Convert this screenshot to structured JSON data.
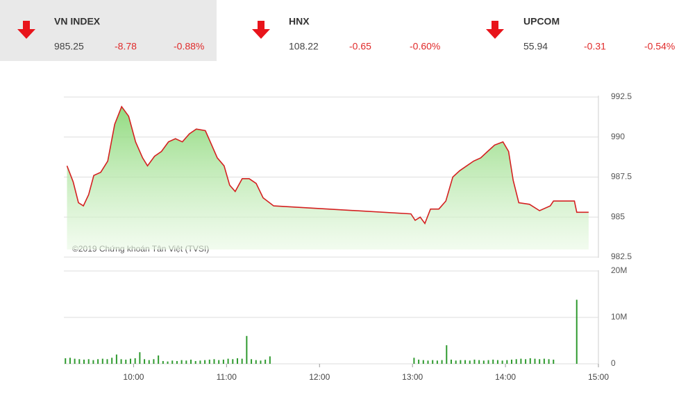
{
  "header": {
    "indices": [
      {
        "name": "VN INDEX",
        "value": "985.25",
        "change": "-8.78",
        "percent": "-0.88%"
      },
      {
        "name": "HNX",
        "value": "108.22",
        "change": "-0.65",
        "percent": "-0.60%"
      },
      {
        "name": "UPCOM",
        "value": "55.94",
        "change": "-0.31",
        "percent": "-0.54%"
      }
    ]
  },
  "chart_data": [
    {
      "type": "line",
      "annotation": "©2019 Chứng khoán Tân Việt (TVSI)",
      "color": "#d42020",
      "x": [
        557,
        561,
        564.4,
        567.6,
        571,
        574.3,
        578.8,
        583.3,
        587.8,
        592.3,
        596.8,
        601.3,
        605.8,
        609,
        613.5,
        618,
        622.5,
        627,
        631.5,
        636,
        640.5,
        646.3,
        649.5,
        654,
        658.4,
        662,
        665.6,
        670.1,
        674.6,
        679.1,
        683.6,
        690.4,
        779,
        781.7,
        785,
        788,
        791.6,
        797,
        801.5,
        806,
        810.5,
        815,
        819.5,
        824,
        828.5,
        833,
        838.4,
        842,
        845,
        848.6,
        855.5,
        862,
        868.9,
        871,
        884.5,
        886,
        893.7
      ],
      "values": [
        988.2,
        987.2,
        985.9,
        985.7,
        986.4,
        987.6,
        987.8,
        988.5,
        990.8,
        991.9,
        991.3,
        989.7,
        988.7,
        988.2,
        988.8,
        989.1,
        989.7,
        989.9,
        989.7,
        990.2,
        990.5,
        990.4,
        989.7,
        988.7,
        988.2,
        987.0,
        986.6,
        987.4,
        987.4,
        987.1,
        986.2,
        985.7,
        985.2,
        984.8,
        985.0,
        984.6,
        985.5,
        985.5,
        986.0,
        987.5,
        987.9,
        988.2,
        988.5,
        988.7,
        989.1,
        989.5,
        989.7,
        989.1,
        987.3,
        985.9,
        985.8,
        985.4,
        985.7,
        986.0,
        986.0,
        985.3,
        985.3
      ],
      "xlim": [
        555,
        900
      ],
      "ylim": [
        982.5,
        992.5
      ],
      "yticks": [
        992.5,
        990,
        987.5,
        985,
        982.5
      ],
      "grid": true
    },
    {
      "type": "bar",
      "color": "#2f9a2f",
      "x": [
        556,
        559,
        562,
        565,
        568,
        571,
        574,
        577,
        580,
        583,
        586,
        589,
        592,
        595,
        598,
        601,
        604,
        607,
        610,
        613,
        616,
        619,
        622,
        625,
        628,
        631,
        634,
        637,
        640,
        643,
        646,
        649,
        652,
        655,
        658,
        661,
        664,
        667,
        670,
        673,
        676,
        679,
        682,
        685,
        688,
        781,
        784,
        787,
        790,
        793,
        796,
        799,
        802,
        805,
        808,
        811,
        814,
        817,
        820,
        823,
        826,
        829,
        832,
        835,
        838,
        841,
        844,
        847,
        850,
        853,
        856,
        859,
        862,
        865,
        868,
        871,
        886
      ],
      "values": [
        1.2,
        1.3,
        1.1,
        1.0,
        0.9,
        1.0,
        0.8,
        1.0,
        1.1,
        1.0,
        1.3,
        2.0,
        1.0,
        0.9,
        1.1,
        1.2,
        2.5,
        1.0,
        0.8,
        1.0,
        1.8,
        0.6,
        0.5,
        0.7,
        0.6,
        0.8,
        0.7,
        0.9,
        0.6,
        0.7,
        0.8,
        0.9,
        1.0,
        0.8,
        0.9,
        1.1,
        1.0,
        1.2,
        1.1,
        6.0,
        1.0,
        0.8,
        0.7,
        0.9,
        1.6,
        1.3,
        0.9,
        0.8,
        0.7,
        0.8,
        0.7,
        0.8,
        4.0,
        0.9,
        0.7,
        0.8,
        0.8,
        0.7,
        0.9,
        0.8,
        0.7,
        0.8,
        0.9,
        0.8,
        0.7,
        0.8,
        0.9,
        1.0,
        1.1,
        1.0,
        1.2,
        1.1,
        1.0,
        1.1,
        1.0,
        0.9,
        13.8
      ],
      "xlim": [
        555,
        900
      ],
      "ylim": [
        0,
        20
      ],
      "yticks": [
        {
          "value": 20,
          "label": "20M"
        },
        {
          "value": 10,
          "label": "10M"
        },
        0
      ],
      "xticks": [
        {
          "value": 600,
          "label": "10:00"
        },
        {
          "value": 660,
          "label": "11:00"
        },
        {
          "value": 720,
          "label": "12:00"
        },
        {
          "value": 780,
          "label": "13:00"
        },
        {
          "value": 840,
          "label": "14:00"
        },
        {
          "value": 900,
          "label": "15:00"
        }
      ],
      "grid": true
    }
  ]
}
